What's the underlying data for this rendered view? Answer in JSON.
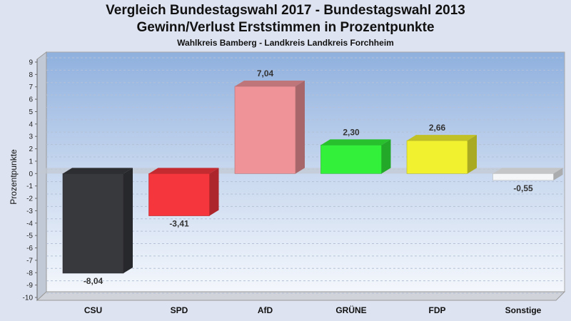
{
  "title": "Vergleich Bundestagswahl 2017 - Bundestagswahl 2013",
  "subtitle": "Gewinn/Verlust Erststimmen in Prozentpunkte",
  "subsubtitle": "Wahlkreis Bamberg - Landkreis Landkreis Forchheim",
  "chart_data": {
    "type": "bar",
    "title": "Vergleich Bundestagswahl 2017 - Bundestagswahl 2013",
    "subtitle": "Gewinn/Verlust Erststimmen in Prozentpunkte",
    "ylabel": "Prozentpunkte",
    "ylim": [
      -10,
      9
    ],
    "yticks": [
      9,
      8,
      7,
      6,
      5,
      4,
      3,
      2,
      1,
      0,
      -1,
      -2,
      -3,
      -4,
      -5,
      -6,
      -7,
      -8,
      -9,
      -10
    ],
    "categories": [
      "CSU",
      "SPD",
      "AfD",
      "GRÜNE",
      "FDP",
      "Sonstige"
    ],
    "values": [
      -8.04,
      -3.41,
      7.04,
      2.3,
      2.66,
      -0.55
    ],
    "value_labels": [
      "-8,04",
      "-3,41",
      "7,04",
      "2,30",
      "2,66",
      "-0,55"
    ],
    "colors": [
      "#38393d",
      "#f5363d",
      "#ef9398",
      "#33f03a",
      "#f1f130",
      "#f4f6f8"
    ],
    "grid": true
  }
}
